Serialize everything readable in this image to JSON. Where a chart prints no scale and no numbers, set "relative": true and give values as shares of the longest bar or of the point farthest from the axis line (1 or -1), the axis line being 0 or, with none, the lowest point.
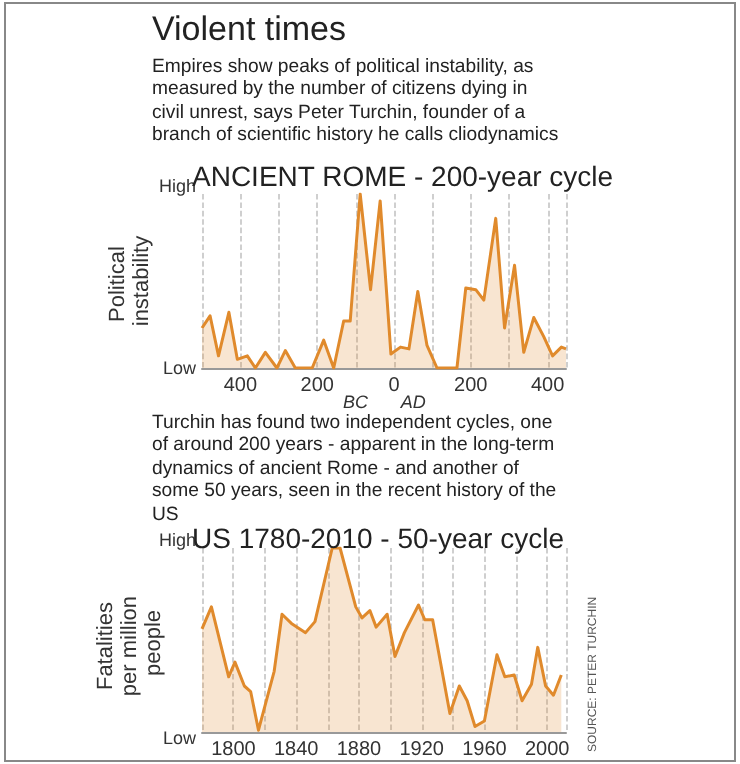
{
  "chart_data": [
    {
      "type": "other",
      "title": "Violent times",
      "subtitle": "Empires show peaks of political instability, as measured by the number of citizens dying in civil unrest, says Peter Turchin, founder of a branch of scientific history he calls cliodynamics"
    },
    {
      "type": "area",
      "title": "ANCIENT ROME - 200-year cycle",
      "ylabel": "Political instability",
      "relative": true,
      "grid": "x",
      "xlim": [
        -500,
        448
      ],
      "xticks": [
        {
          "value": -500,
          "label": null
        },
        {
          "value": -400,
          "label": "400"
        },
        {
          "value": -300,
          "label": null
        },
        {
          "value": -200,
          "label": "200"
        },
        {
          "value": -100,
          "label": null
        },
        0,
        {
          "value": 100,
          "label": null
        },
        200,
        {
          "value": 300,
          "label": null
        },
        400
      ],
      "x": [
        -500,
        -479,
        -457,
        -430,
        -408,
        -382,
        -361,
        -335,
        -305,
        -283,
        -257,
        -213,
        -183,
        -157,
        -131,
        -114,
        -88,
        -61,
        -36,
        -8,
        17,
        39,
        62,
        86,
        112,
        164,
        187,
        213,
        234,
        265,
        288,
        314,
        338,
        364,
        390,
        413,
        436,
        448
      ],
      "series": [
        {
          "color": "#e08a2c",
          "values": [
            0.23,
            0.3,
            0.07,
            0.32,
            0.05,
            0.07,
            0,
            0.09,
            0,
            0.1,
            0,
            0,
            0.16,
            0,
            0.27,
            0.27,
            1,
            0.45,
            0.96,
            0.08,
            0.12,
            0.11,
            0.44,
            0.13,
            0,
            0,
            0.46,
            0.45,
            0.39,
            0.86,
            0.23,
            0.59,
            0.09,
            0.29,
            0.18,
            0.07,
            0.12,
            0.11
          ]
        }
      ],
      "annotations": [
        "High",
        "Low",
        "BC",
        "AD"
      ]
    },
    {
      "type": "other",
      "subtitle": "Turchin has found two independent cycles, one of around 200 years - apparent in the long-term dynamics of ancient Rome - and another of some 50 years, seen in the recent history of the US"
    },
    {
      "type": "area",
      "title": "US 1780-2010 - 50-year cycle",
      "ylabel": "Fatalities per million people",
      "relative": true,
      "grid": "x",
      "xlim": [
        1780,
        2012
      ],
      "xticks": [
        {
          "value": 1780,
          "label": null
        },
        1800,
        {
          "value": 1820,
          "label": null
        },
        1840,
        {
          "value": 1860,
          "label": null
        },
        1880,
        {
          "value": 1900,
          "label": null
        },
        1920,
        {
          "value": 1940,
          "label": null
        },
        1960,
        {
          "value": 1980,
          "label": null
        },
        2000
      ],
      "x": [
        1780,
        1786,
        1797,
        1801,
        1807,
        1811,
        1816,
        1826,
        1831,
        1837,
        1846,
        1852,
        1863,
        1868,
        1878,
        1882,
        1887,
        1891,
        1898,
        1903,
        1909,
        1918,
        1922,
        1927,
        1938,
        1944,
        1949,
        1954,
        1960,
        1968,
        1973,
        1979,
        1984,
        1990,
        1994,
        1999,
        2004,
        2009
      ],
      "series": [
        {
          "color": "#e08a2c",
          "values": [
            0.56,
            0.68,
            0.3,
            0.38,
            0.25,
            0.22,
            0.01,
            0.33,
            0.64,
            0.59,
            0.54,
            0.6,
            1,
            1,
            0.68,
            0.62,
            0.66,
            0.57,
            0.64,
            0.41,
            0.54,
            0.69,
            0.61,
            0.61,
            0.1,
            0.25,
            0.17,
            0.03,
            0.06,
            0.42,
            0.3,
            0.31,
            0.17,
            0.26,
            0.46,
            0.25,
            0.2,
            0.31
          ]
        }
      ],
      "annotations": [
        "High",
        "Low",
        "SOURCE: PETER TURCHIN"
      ]
    }
  ]
}
